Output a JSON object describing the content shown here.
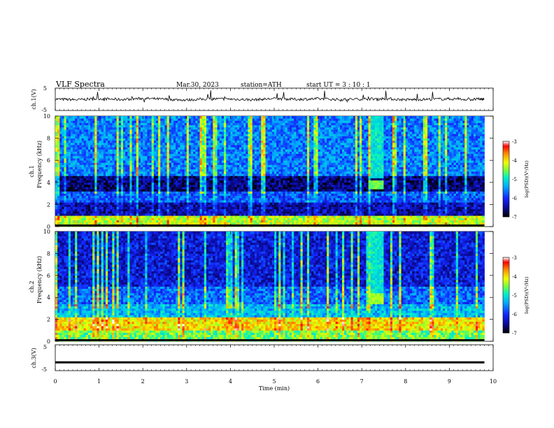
{
  "header": {
    "title": "VLF  Spectra",
    "date": "Mar.30, 2023",
    "station": "station=ATH",
    "start": "start  UT  =   3  : 10 : 1"
  },
  "chart_data": [
    {
      "type": "line",
      "panel": "ch1-waveform",
      "ylabel": "ch.1(V)",
      "ylim": [
        -5,
        5
      ],
      "yticks": [
        "5",
        "-5"
      ],
      "baseline_v": 0,
      "x": [
        0,
        0.5,
        1,
        1.5,
        2,
        2.5,
        3,
        3.5,
        4,
        4.5,
        5,
        5.5,
        6,
        6.5,
        7,
        7.5,
        8,
        8.5,
        9,
        9.5,
        9.8
      ],
      "y": [
        0.1,
        -0.2,
        0.3,
        -0.1,
        0.4,
        0.0,
        -0.3,
        0.2,
        0.1,
        -0.2,
        0.3,
        0.0,
        0.2,
        -0.1,
        0.1,
        0.3,
        -0.2,
        0.0,
        0.2,
        -0.1,
        0.2
      ]
    },
    {
      "type": "heatmap",
      "panel": "ch1-spectrogram",
      "ylabel": "ch.1\nFrequency  (kHz)",
      "xlim": [
        0,
        10
      ],
      "ylim": [
        0,
        10
      ],
      "yticks": [
        "0",
        "2",
        "4",
        "6",
        "8",
        "10"
      ],
      "data_end_min": 9.8,
      "colorbar": {
        "label": "log(PSD)(V²/Hz)",
        "ticks": [
          "-3",
          "-4",
          "-5",
          "-6",
          "-7"
        ],
        "range": [
          -7,
          -3
        ]
      },
      "features": [
        {
          "freq_khz": [
            0,
            1.0
          ],
          "level": -4.3
        },
        {
          "freq_khz": [
            1.0,
            2.3
          ],
          "level": -6.4
        },
        {
          "freq_khz": [
            2.3,
            3.2
          ],
          "level": -5.8
        },
        {
          "freq_khz": [
            3.2,
            4.6
          ],
          "level": -6.6
        },
        {
          "freq_khz": [
            4.6,
            10
          ],
          "level": -5.6
        },
        {
          "burst_time_min": [
            7.15,
            7.5
          ],
          "freq_khz": [
            3.5,
            4.2
          ],
          "level": -4.6
        }
      ]
    },
    {
      "type": "heatmap",
      "panel": "ch2-spectrogram",
      "ylabel": "ch.2\nFrequency  (kHz)",
      "xlim": [
        0,
        10
      ],
      "ylim": [
        0,
        10
      ],
      "yticks": [
        "0",
        "2",
        "4",
        "6",
        "8",
        "10"
      ],
      "data_end_min": 9.8,
      "colorbar": {
        "label": "log(PSD)(V²/Hz)",
        "ticks": [
          "-3",
          "-4",
          "-5",
          "-6",
          "-7"
        ],
        "range": [
          -7,
          -3
        ]
      },
      "features": [
        {
          "freq_khz": [
            0,
            1.0
          ],
          "level": -4.6
        },
        {
          "freq_khz": [
            1.0,
            2.2
          ],
          "level": -4.0
        },
        {
          "freq_khz": [
            2.2,
            3.4
          ],
          "level": -5.3
        },
        {
          "freq_khz": [
            3.4,
            5.0
          ],
          "level": -5.7
        },
        {
          "freq_khz": [
            5.0,
            10
          ],
          "level": -6.2
        },
        {
          "burst_time_min": [
            7.15,
            7.5
          ],
          "freq_khz": [
            3.5,
            4.3
          ],
          "level": -4.4
        }
      ]
    },
    {
      "type": "line",
      "panel": "ch3-waveform",
      "ylabel": "ch.3(V)",
      "ylim": [
        -5,
        5
      ],
      "yticks": [
        "5",
        "-5"
      ],
      "x": [
        0,
        9.8
      ],
      "y": [
        -1.8,
        -1.8
      ]
    }
  ],
  "x_axis": {
    "label": "Time  (min)",
    "ticks": [
      "0",
      "1",
      "2",
      "3",
      "4",
      "5",
      "6",
      "7",
      "8",
      "9",
      "10"
    ]
  },
  "colors": {
    "scale": [
      "#000000",
      "#0000ff",
      "#00aaff",
      "#00ffaa",
      "#aaff00",
      "#ffff00",
      "#ff8800",
      "#ff0000",
      "#ffffff"
    ]
  }
}
